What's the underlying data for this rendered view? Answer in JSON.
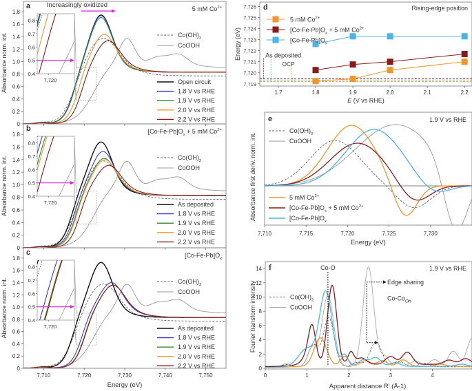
{
  "colors": {
    "black": "#111111",
    "blue": "#3a3ad6",
    "green": "#2e8b2e",
    "orange": "#f0962a",
    "darkred": "#8b1a1a",
    "gray": "#8a8a8a",
    "magenta": "#e020e0",
    "cyan": "#4ab4e6"
  },
  "chart_data": [
    {
      "panel": "a",
      "type": "line",
      "title": "5 mM Co2+",
      "annotation": "Increasingly oxidized",
      "xlabel": "Energy (eV)",
      "ylabel": "Absorbance norm. int.",
      "xlim": [
        7705,
        7755
      ],
      "ylim": [
        0,
        1.9
      ],
      "xticks": [
        "7,710",
        "7,720",
        "7,730",
        "7,740",
        "7,750"
      ],
      "yticks": [
        "0",
        "0.2",
        "0.4",
        "0.6",
        "0.8",
        "1.0",
        "1.2",
        "1.4",
        "1.6",
        "1.8"
      ],
      "inset": {
        "xtick": "7,720",
        "yticks": [
          "0.4",
          "0.5",
          "0.6",
          "0.7",
          "0.8"
        ],
        "marker_y": 0.5
      },
      "references": [
        {
          "name": "Co(OH)2",
          "style": "dashed"
        },
        {
          "name": "CoOOH",
          "style": "solid-gray"
        }
      ],
      "series": [
        {
          "name": "Open circuit",
          "color": "black",
          "e0": 7716.3,
          "peak_x": 7724.2,
          "peak_y": 1.78
        },
        {
          "name": "1.8 V vs RHE",
          "color": "blue",
          "e0": 7716.3,
          "peak_x": 7724.2,
          "peak_y": 1.77
        },
        {
          "name": "1.9 V vs RHE",
          "color": "green",
          "e0": 7716.4,
          "peak_x": 7724.2,
          "peak_y": 1.74
        },
        {
          "name": "2.0 V vs RHE",
          "color": "orange",
          "e0": 7717.3,
          "peak_x": 7725.0,
          "peak_y": 1.47
        },
        {
          "name": "2.2 V vs RHE",
          "color": "darkred",
          "e0": 7718.2,
          "peak_x": 7726.0,
          "peak_y": 1.37
        }
      ]
    },
    {
      "panel": "b",
      "type": "line",
      "title": "[Co-Fe-Pb]Ox + 5 mM Co2+",
      "xlabel": "Energy (eV)",
      "ylabel": "Absorbance norm. int.",
      "xlim": [
        7705,
        7755
      ],
      "ylim": [
        0,
        1.9
      ],
      "yticks": [
        "0",
        "0.2",
        "0.4",
        "0.6",
        "0.8",
        "1.0",
        "1.2",
        "1.4",
        "1.6",
        "1.8"
      ],
      "inset": {
        "xtick": "7,720",
        "yticks": [
          "0.4",
          "0.5",
          "0.6",
          "0.7",
          "0.8"
        ],
        "marker_y": 0.5
      },
      "references": [
        {
          "name": "Co(OH)2",
          "style": "dashed"
        },
        {
          "name": "CoOOH",
          "style": "solid-gray"
        }
      ],
      "series": [
        {
          "name": "As deposited",
          "color": "black",
          "e0": 7715.8,
          "peak_x": 7724.2,
          "peak_y": 1.71
        },
        {
          "name": "1.8 V vs RHE",
          "color": "blue",
          "e0": 7716.4,
          "peak_x": 7724.7,
          "peak_y": 1.56
        },
        {
          "name": "1.9 V vs RHE",
          "color": "green",
          "e0": 7716.8,
          "peak_x": 7725.0,
          "peak_y": 1.45
        },
        {
          "name": "2.0 V vs RHE",
          "color": "orange",
          "e0": 7717.0,
          "peak_x": 7725.2,
          "peak_y": 1.43
        },
        {
          "name": "2.2 V vs RHE",
          "color": "darkred",
          "e0": 7717.8,
          "peak_x": 7726.2,
          "peak_y": 1.34
        }
      ]
    },
    {
      "panel": "c",
      "type": "line",
      "title": "[Co-Fe-Pb]Ox",
      "xlabel": "Energy (eV)",
      "ylabel": "Absorbance norm. int.",
      "xlim": [
        7705,
        7755
      ],
      "ylim": [
        0,
        1.9
      ],
      "xticks": [
        "7,710",
        "7,720",
        "7,730",
        "7,740",
        "7,750"
      ],
      "yticks": [
        "0",
        "0.2",
        "0.4",
        "0.6",
        "0.8",
        "1.0",
        "1.2",
        "1.4",
        "1.6",
        "1.8"
      ],
      "inset": {
        "xtick": "7,720",
        "yticks": [
          "0.4",
          "0.5",
          "0.6",
          "0.7",
          "0.8"
        ],
        "marker_y": 0.5
      },
      "references": [
        {
          "name": "Co(OH)2",
          "style": "dashed"
        },
        {
          "name": "CoOOH",
          "style": "solid-gray"
        }
      ],
      "series": [
        {
          "name": "As deposited",
          "color": "black",
          "e0": 7716.0,
          "peak_x": 7724.2,
          "peak_y": 1.76
        },
        {
          "name": "1.8 V vs RHE",
          "color": "blue",
          "e0": 7718.3,
          "peak_x": 7726.8,
          "peak_y": 1.43
        },
        {
          "name": "1.9 V vs RHE",
          "color": "green",
          "e0": 7718.9,
          "peak_x": 7727.2,
          "peak_y": 1.39
        },
        {
          "name": "2.0 V vs RHE",
          "color": "orange",
          "e0": 7719.0,
          "peak_x": 7727.2,
          "peak_y": 1.39
        },
        {
          "name": "2.2 V vs RHE",
          "color": "darkred",
          "e0": 7719.0,
          "peak_x": 7727.2,
          "peak_y": 1.39
        }
      ]
    },
    {
      "panel": "d",
      "type": "scatter",
      "title": "Rising-edge position",
      "xlabel": "E (V vs RHE)",
      "ylabel": "Energy (eV)",
      "xlim": [
        1.65,
        2.22
      ],
      "ylim": [
        7718.8,
        7726.4
      ],
      "xticks": [
        "1.7",
        "1.8",
        "1.9",
        "2.0",
        "2.1",
        "2.2"
      ],
      "yticks": [
        "7,719",
        "7,720",
        "7,721",
        "7,722",
        "7,723",
        "7,724",
        "7,725",
        "7,726"
      ],
      "annotations": [
        {
          "text": "As deposited",
          "color": "black"
        },
        {
          "text": "OCP",
          "color": "orange"
        }
      ],
      "reference_lines": [
        {
          "name": "As deposited [Co-Fe-Pb]Ox + 5 mM Co2+",
          "y": 7719.45,
          "color": "darkred",
          "x_marker": 1.66
        },
        {
          "name": "As deposited [Co-Fe-Pb]Ox",
          "y": 7719.35,
          "color": "cyan",
          "x_marker": 1.68
        },
        {
          "name": "OCP 5 mM Co2+",
          "y": 7719.2,
          "color": "orange",
          "x_marker": 1.735
        }
      ],
      "x": [
        1.8,
        1.9,
        2.0,
        2.2
      ],
      "series": [
        {
          "name": "5 mM Co2+",
          "color": "orange",
          "values": [
            7719.25,
            7719.45,
            7720.25,
            7721.0
          ]
        },
        {
          "name": "[Co-Fe-Pb]Ox + 5 mM Co2+",
          "color": "darkred",
          "values": [
            7720.25,
            7720.75,
            7721.0,
            7721.7
          ]
        },
        {
          "name": "[Co-Fe-Pb]Ox",
          "color": "cyan",
          "values": [
            7722.6,
            7723.3,
            7723.3,
            7723.3
          ]
        }
      ]
    },
    {
      "panel": "e",
      "type": "line",
      "title": "1.9 V vs RHE",
      "xlabel": "Energy (eV)",
      "ylabel": "Absorbance first deriv. norm. int.",
      "xlim": [
        7710,
        7735
      ],
      "xticks": [
        "7,710",
        "7,715",
        "7,720",
        "7,725",
        "7,730"
      ],
      "references": [
        {
          "name": "Co(OH)2",
          "style": "dashed",
          "peak_x": 7718.5,
          "min_x": 7728.0
        },
        {
          "name": "CoOOH",
          "style": "solid-gray",
          "peak_x": 7725.5,
          "min_x": 7733.0
        }
      ],
      "series": [
        {
          "name": "5 mM Co2+",
          "color": "orange",
          "peak_x": 7720.5,
          "min_x": 7727.0
        },
        {
          "name": "[Co-Fe-Pb]Ox + 5 mM Co2+",
          "color": "darkred",
          "peak_x": 7721.2,
          "min_x": 7728.0
        },
        {
          "name": "[Co-Fe-Pb]Ox",
          "color": "cyan",
          "peak_x": 7723.0,
          "min_x": 7730.5
        }
      ]
    },
    {
      "panel": "f",
      "type": "line",
      "title": "1.9 V vs RHE",
      "xlabel": "Apparent distance R' (Å-1)",
      "ylabel": "Fourier transform intensity",
      "xlim": [
        0,
        4.95
      ],
      "ylim": [
        0,
        14.3
      ],
      "xticks": [
        "0",
        "1",
        "2",
        "3",
        "4"
      ],
      "yticks": [
        "0",
        "2",
        "4",
        "6",
        "8",
        "10",
        "12",
        "14"
      ],
      "annotations": [
        {
          "text": "Co-O",
          "x": 1.5
        },
        {
          "text": "Edge sharing",
          "x": 2.5
        },
        {
          "text": "Co-Co",
          "subscript": "Oh"
        }
      ],
      "references": [
        {
          "name": "Co(OH)2",
          "style": "dashed",
          "peaks": [
            [
              1.15,
              3.2
            ],
            [
              1.52,
              6.9
            ],
            [
              2.65,
              3.5
            ]
          ]
        },
        {
          "name": "CoOOH",
          "style": "solid-gray",
          "peaks": [
            [
              1.5,
              10.2
            ],
            [
              2.47,
              14.3
            ],
            [
              4.5,
              2.2
            ]
          ]
        }
      ],
      "series": [
        {
          "name": "5 mM Co2+",
          "color": "orange",
          "peaks": [
            [
              1.32,
              4.2
            ],
            [
              1.9,
              1.5
            ]
          ]
        },
        {
          "name": "[Co-Fe-Pb]Ox + 5 mM Co2+",
          "color": "darkred",
          "peaks": [
            [
              1.12,
              5.6
            ],
            [
              1.6,
              11.3
            ],
            [
              2.05,
              1.8
            ],
            [
              3.4,
              1.7
            ]
          ]
        },
        {
          "name": "[Co-Fe-Pb]Ox",
          "color": "cyan",
          "peaks": [
            [
              1.45,
              10.8
            ],
            [
              1.9,
              1.7
            ],
            [
              2.6,
              1.3
            ]
          ]
        }
      ]
    }
  ]
}
